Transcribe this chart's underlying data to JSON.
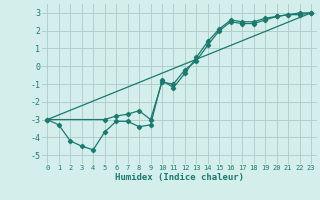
{
  "xlabel": "Humidex (Indice chaleur)",
  "ylabel": "",
  "bg_color": "#d4eeec",
  "grid_color": "#b0cfcc",
  "line_color": "#1a7a6e",
  "xlim": [
    -0.5,
    23.5
  ],
  "ylim": [
    -5.5,
    3.5
  ],
  "xticks": [
    0,
    1,
    2,
    3,
    4,
    5,
    6,
    7,
    8,
    9,
    10,
    11,
    12,
    13,
    14,
    15,
    16,
    17,
    18,
    19,
    20,
    21,
    22,
    23
  ],
  "yticks": [
    -5,
    -4,
    -3,
    -2,
    -1,
    0,
    1,
    2,
    3
  ],
  "line1_x": [
    0,
    1,
    2,
    3,
    4,
    5,
    6,
    7,
    8,
    9,
    10,
    11,
    12,
    13,
    14,
    15,
    16,
    17,
    18,
    19,
    20,
    21,
    22,
    23
  ],
  "line1_y": [
    -3.0,
    -3.3,
    -4.2,
    -4.5,
    -4.7,
    -3.7,
    -3.1,
    -3.1,
    -3.4,
    -3.3,
    -0.8,
    -1.2,
    -0.4,
    0.5,
    1.4,
    2.1,
    2.6,
    2.5,
    2.5,
    2.7,
    2.8,
    2.9,
    2.9,
    3.0
  ],
  "line2_x": [
    0,
    5,
    6,
    7,
    8,
    9,
    10,
    11,
    12,
    13,
    14,
    15,
    16,
    17,
    18,
    19,
    20,
    21,
    22,
    23
  ],
  "line2_y": [
    -3.0,
    -3.0,
    -2.8,
    -2.7,
    -2.5,
    -3.0,
    -0.9,
    -1.0,
    -0.2,
    0.3,
    1.2,
    2.0,
    2.5,
    2.4,
    2.4,
    2.6,
    2.8,
    2.9,
    3.0,
    3.0
  ],
  "line3_x": [
    0,
    23
  ],
  "line3_y": [
    -3.0,
    3.0
  ]
}
